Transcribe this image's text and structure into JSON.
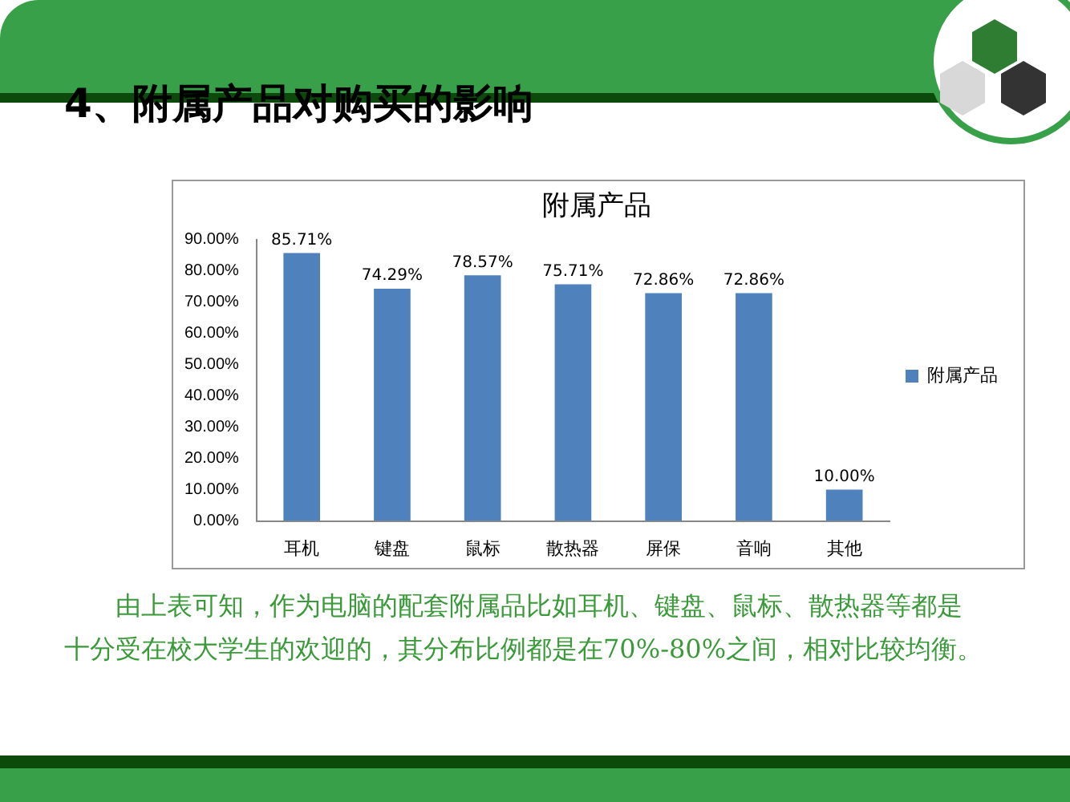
{
  "chart_data": {
    "type": "bar",
    "title": "附属产品",
    "categories": [
      "耳机",
      "键盘",
      "鼠标",
      "散热器",
      "屏保",
      "音响",
      "其他"
    ],
    "series": [
      {
        "name": "附属产品",
        "color": "#4f81bd",
        "values": [
          85.71,
          74.29,
          78.57,
          75.71,
          72.86,
          72.86,
          10.0
        ],
        "value_labels": [
          "85.71%",
          "74.29%",
          "78.57%",
          "75.71%",
          "72.86%",
          "72.86%",
          "10.00%"
        ]
      }
    ],
    "ylim": [
      0,
      90
    ],
    "yticks": [
      {
        "value": 0,
        "label": "0.00%"
      },
      {
        "value": 10,
        "label": "10.00%"
      },
      {
        "value": 20,
        "label": "20.00%"
      },
      {
        "value": 30,
        "label": "30.00%"
      },
      {
        "value": 40,
        "label": "40.00%"
      },
      {
        "value": 50,
        "label": "50.00%"
      },
      {
        "value": 60,
        "label": "60.00%"
      },
      {
        "value": 70,
        "label": "70.00%"
      },
      {
        "value": 80,
        "label": "80.00%"
      },
      {
        "value": 90,
        "label": "90.00%"
      }
    ],
    "grid": false,
    "legend": "right",
    "annotations": [
      "4、附属产品对购买的影响",
      "由上表可知，作为电脑的配套附属品比如耳机、键盘、鼠标、散热器等都是十分受在校大学生的欢迎的，其分布比例都是在70%-80%之间，相对比较均衡。"
    ]
  }
}
